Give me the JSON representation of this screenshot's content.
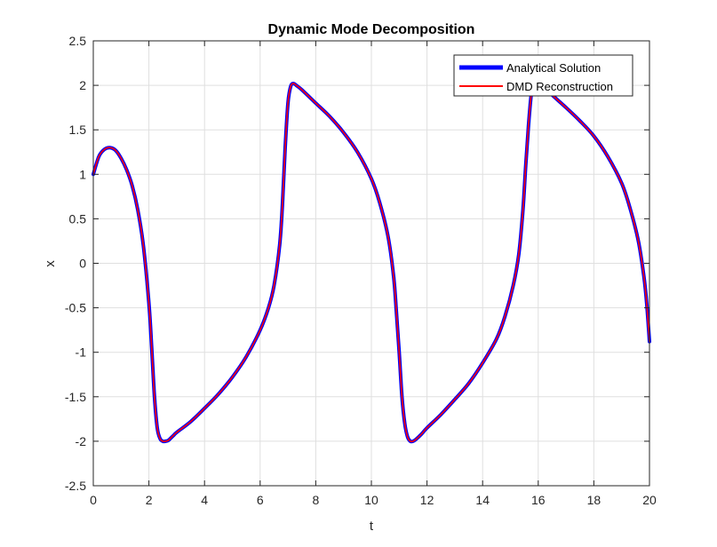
{
  "chart_data": {
    "type": "line",
    "title": "Dynamic Mode Decomposition",
    "xlabel": "t",
    "ylabel": "x",
    "xlim": [
      0,
      20
    ],
    "ylim": [
      -2.5,
      2.5
    ],
    "xticks": [
      0,
      2,
      4,
      6,
      8,
      10,
      12,
      14,
      16,
      18,
      20
    ],
    "yticks": [
      -2.5,
      -2,
      -1.5,
      -1,
      -0.5,
      0,
      0.5,
      1,
      1.5,
      2,
      2.5
    ],
    "xtick_labels": [
      "0",
      "2",
      "4",
      "6",
      "8",
      "10",
      "12",
      "14",
      "16",
      "18",
      "20"
    ],
    "ytick_labels": [
      "-2.5",
      "-2",
      "-1.5",
      "-1",
      "-0.5",
      "0",
      "0.5",
      "1",
      "1.5",
      "2",
      "2.5"
    ],
    "grid": true,
    "legend_position": "top-right",
    "series": [
      {
        "name": "Analytical Solution",
        "color": "#0000ff",
        "style": "thick",
        "x": [
          0,
          0.2,
          0.4,
          0.6,
          0.8,
          1.0,
          1.2,
          1.4,
          1.6,
          1.8,
          2.0,
          2.1,
          2.2,
          2.3,
          2.4,
          2.5,
          2.6,
          2.7,
          2.8,
          2.9,
          3.0,
          3.5,
          4.0,
          4.5,
          5.0,
          5.5,
          6.0,
          6.3,
          6.5,
          6.7,
          6.8,
          6.9,
          7.0,
          7.1,
          7.2,
          7.3,
          7.5,
          8.0,
          8.5,
          9.0,
          9.5,
          10.0,
          10.3,
          10.6,
          10.8,
          10.9,
          11.0,
          11.1,
          11.2,
          11.3,
          11.4,
          11.5,
          11.6,
          11.8,
          12.0,
          12.5,
          13.0,
          13.5,
          14.0,
          14.5,
          14.8,
          15.1,
          15.3,
          15.45,
          15.55,
          15.65,
          15.75,
          15.85,
          15.95,
          16.1,
          16.4,
          17.0,
          17.5,
          18.0,
          18.5,
          19.0,
          19.3,
          19.6,
          19.8,
          19.9,
          20.0
        ],
        "y": [
          1.0,
          1.2,
          1.28,
          1.3,
          1.27,
          1.18,
          1.05,
          0.87,
          0.6,
          0.2,
          -0.45,
          -0.95,
          -1.5,
          -1.85,
          -1.97,
          -2.0,
          -2.0,
          -1.99,
          -1.96,
          -1.93,
          -1.9,
          -1.78,
          -1.63,
          -1.47,
          -1.28,
          -1.05,
          -0.75,
          -0.5,
          -0.25,
          0.2,
          0.65,
          1.3,
          1.8,
          1.99,
          2.02,
          2.0,
          1.95,
          1.8,
          1.65,
          1.47,
          1.25,
          0.95,
          0.68,
          0.3,
          -0.15,
          -0.55,
          -1.0,
          -1.5,
          -1.8,
          -1.95,
          -2.0,
          -2.0,
          -1.98,
          -1.92,
          -1.85,
          -1.7,
          -1.53,
          -1.35,
          -1.12,
          -0.85,
          -0.6,
          -0.25,
          0.1,
          0.6,
          1.1,
          1.55,
          1.9,
          2.05,
          2.08,
          2.02,
          1.92,
          1.75,
          1.6,
          1.43,
          1.2,
          0.9,
          0.62,
          0.25,
          -0.15,
          -0.45,
          -0.88
        ]
      },
      {
        "name": "DMD Reconstruction",
        "color": "#ff0000",
        "style": "thin",
        "x": [
          0,
          0.2,
          0.4,
          0.6,
          0.8,
          1.0,
          1.2,
          1.4,
          1.6,
          1.8,
          2.0,
          2.1,
          2.2,
          2.3,
          2.4,
          2.5,
          2.6,
          2.7,
          2.8,
          2.9,
          3.0,
          3.5,
          4.0,
          4.5,
          5.0,
          5.5,
          6.0,
          6.3,
          6.5,
          6.7,
          6.8,
          6.9,
          7.0,
          7.1,
          7.2,
          7.3,
          7.5,
          8.0,
          8.5,
          9.0,
          9.5,
          10.0,
          10.3,
          10.6,
          10.8,
          10.9,
          11.0,
          11.1,
          11.2,
          11.3,
          11.4,
          11.5,
          11.6,
          11.8,
          12.0,
          12.5,
          13.0,
          13.5,
          14.0,
          14.5,
          14.8,
          15.1,
          15.3,
          15.45,
          15.55,
          15.65,
          15.75,
          15.85,
          15.95,
          16.1,
          16.4,
          17.0,
          17.5,
          18.0,
          18.5,
          19.0,
          19.3,
          19.6,
          19.8,
          19.9,
          20.0
        ],
        "y": [
          1.0,
          1.2,
          1.28,
          1.3,
          1.27,
          1.18,
          1.05,
          0.87,
          0.6,
          0.2,
          -0.45,
          -0.95,
          -1.5,
          -1.85,
          -1.97,
          -2.0,
          -2.0,
          -1.99,
          -1.96,
          -1.93,
          -1.9,
          -1.78,
          -1.63,
          -1.47,
          -1.28,
          -1.05,
          -0.75,
          -0.5,
          -0.25,
          0.2,
          0.65,
          1.3,
          1.8,
          1.99,
          2.02,
          2.0,
          1.95,
          1.8,
          1.65,
          1.47,
          1.25,
          0.95,
          0.68,
          0.3,
          -0.15,
          -0.55,
          -1.0,
          -1.5,
          -1.8,
          -1.95,
          -2.0,
          -2.0,
          -1.98,
          -1.92,
          -1.85,
          -1.7,
          -1.53,
          -1.35,
          -1.12,
          -0.85,
          -0.6,
          -0.25,
          0.1,
          0.6,
          1.1,
          1.55,
          1.9,
          2.05,
          2.08,
          2.02,
          1.92,
          1.75,
          1.6,
          1.43,
          1.2,
          0.9,
          0.62,
          0.25,
          -0.15,
          -0.45,
          -0.88
        ]
      }
    ]
  }
}
